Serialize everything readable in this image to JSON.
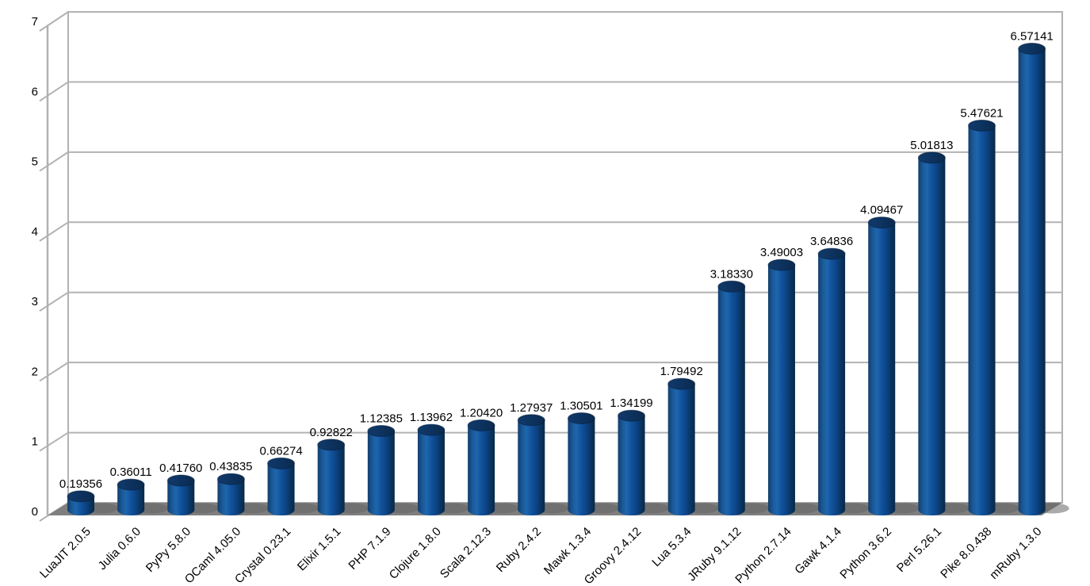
{
  "figure": {
    "background": "#ffffff",
    "bar_base_color": "#004586",
    "bar_highlight_color": "#1e66ac",
    "bar_shade_color": "#082948",
    "bar_cap_color": "#0d3361",
    "floor_color": "#7f7f7f",
    "shadow_color": "#646464",
    "grid_color": "#b2b2b2",
    "text_color": "#000000"
  },
  "chart_data": {
    "type": "bar",
    "style": "3d-cylinder",
    "title": "",
    "xlabel": "",
    "ylabel": "",
    "ylim": [
      0,
      7
    ],
    "y_ticks": [
      "0",
      "1",
      "2",
      "3",
      "4",
      "5",
      "6",
      "7"
    ],
    "grid": true,
    "legend": false,
    "x_label_rotation_deg": 45,
    "categories": [
      "LuaJIT 2.0.5",
      "Julia 0.6.0",
      "PyPy 5.8.0",
      "OCaml 4.05.0",
      "Crystal 0.23.1",
      "Elixir 1.5.1",
      "PHP 7.1.9",
      "Clojure 1.8.0",
      "Scala 2.12.3",
      "Ruby 2.4.2",
      "Mawk 1.3.4",
      "Groovy 2.4.12",
      "Lua 5.3.4",
      "JRuby 9.1.12",
      "Python 2.7.14",
      "Gawk 4.1.4",
      "Python 3.6.2",
      "Perl 5.26.1",
      "Pike 8.0.438",
      "mRuby 1.3.0"
    ],
    "values": [
      0.19356,
      0.36011,
      0.4176,
      0.43835,
      0.66274,
      0.92822,
      1.12385,
      1.13962,
      1.2042,
      1.27937,
      1.30501,
      1.34199,
      1.79492,
      3.1833,
      3.49003,
      3.64836,
      4.09467,
      5.01813,
      5.47621,
      6.57141
    ],
    "value_labels": [
      "0.19356",
      "0.36011",
      "0.41760",
      "0.43835",
      "0.66274",
      "0.92822",
      "1.12385",
      "1.13962",
      "1.20420",
      "1.27937",
      "1.30501",
      "1.34199",
      "1.79492",
      "3.18330",
      "3.49003",
      "3.64836",
      "4.09467",
      "5.01813",
      "5.47621",
      "6.57141"
    ]
  }
}
